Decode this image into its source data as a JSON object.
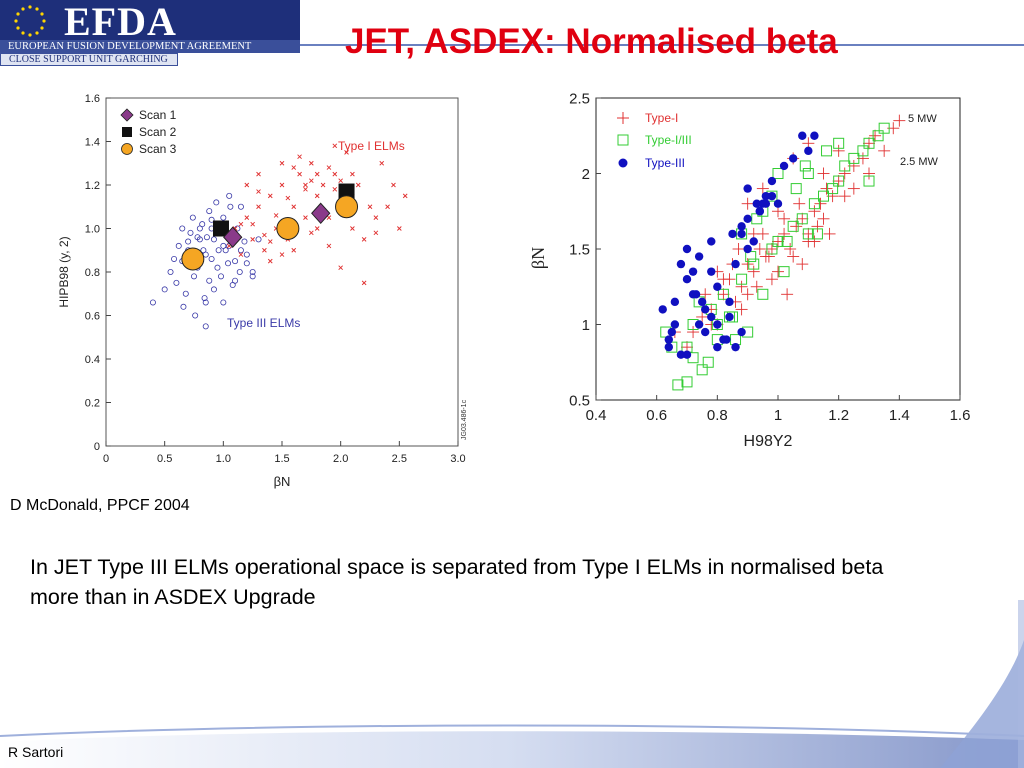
{
  "header": {
    "logo_text": "EFDA",
    "logo_subtitle": "EUROPEAN FUSION DEVELOPMENT AGREEMENT",
    "logo_unit": "CLOSE SUPPORT UNIT GARCHING",
    "title": "JET, ASDEX: Normalised beta"
  },
  "chart_data": [
    {
      "type": "scatter",
      "xlabel": "βN",
      "ylabel": "HIPB98 (y, 2)",
      "xlim": [
        0,
        3.0
      ],
      "ylim": [
        0,
        1.6
      ],
      "xticks": [
        "0",
        "0.5",
        "1.0",
        "1.5",
        "2.0",
        "2.5",
        "3.0"
      ],
      "yticks": [
        "0",
        "0.2",
        "0.4",
        "0.6",
        "0.8",
        "1.0",
        "1.2",
        "1.4",
        "1.6"
      ],
      "legend": [
        "Scan 1",
        "Scan 2",
        "Scan 3"
      ],
      "legend_position": "top-left",
      "annotations": [
        "Type I ELMs",
        "Type III ELMs",
        "JG03.486-1c"
      ],
      "grid": false,
      "colors": {
        "type1": "#e03030",
        "type3": "#3a3aa8",
        "scan1": "#8a3a8a",
        "scan2": "#111111",
        "scan3": "#f5a623"
      },
      "series": [
        {
          "name": "Scan 1",
          "marker": "diamond",
          "x": [
            1.08,
            1.83
          ],
          "y": [
            0.96,
            1.07
          ]
        },
        {
          "name": "Scan 2",
          "marker": "square",
          "x": [
            0.98,
            2.05
          ],
          "y": [
            1.0,
            1.17
          ]
        },
        {
          "name": "Scan 3",
          "marker": "circle",
          "x": [
            0.74,
            1.55,
            2.05
          ],
          "y": [
            0.86,
            1.0,
            1.1
          ]
        },
        {
          "name": "Type I ELMs",
          "marker": "x",
          "x": [
            1.05,
            1.1,
            1.15,
            1.2,
            1.25,
            1.3,
            1.35,
            1.4,
            1.45,
            1.5,
            1.55,
            1.6,
            1.65,
            1.7,
            1.75,
            1.8,
            1.85,
            1.9,
            1.95,
            2.0,
            2.05,
            2.1,
            2.15,
            2.2,
            2.3,
            2.4,
            2.5,
            2.55,
            1.2,
            1.3,
            1.4,
            1.5,
            1.6,
            1.7,
            1.8,
            1.9,
            2.0,
            2.1,
            1.65,
            1.75,
            1.85,
            1.95,
            2.05,
            1.45,
            1.35,
            1.25,
            1.55,
            2.25,
            2.35,
            2.45,
            1.15,
            2.2,
            1.7,
            1.9,
            1.6,
            1.3,
            1.5,
            1.8,
            2.0,
            1.4,
            1.1,
            2.1,
            2.3,
            1.95,
            1.75
          ],
          "y": [
            0.92,
            1.0,
            0.88,
            1.05,
            0.95,
            1.1,
            0.9,
            1.15,
            1.0,
            1.2,
            0.95,
            1.1,
            1.25,
            1.05,
            1.3,
            1.15,
            1.2,
            1.05,
            1.25,
            1.1,
            1.35,
            1.0,
            1.2,
            0.95,
            1.05,
            1.1,
            1.0,
            1.15,
            1.2,
            1.25,
            0.85,
            1.3,
            0.9,
            1.2,
            1.0,
            1.28,
            1.22,
            1.15,
            1.33,
            0.98,
            1.08,
            1.18,
            1.12,
            1.06,
            0.97,
            1.02,
            1.14,
            1.1,
            1.3,
            1.2,
            1.02,
            0.75,
            1.18,
            0.92,
            1.28,
            1.17,
            0.88,
            1.25,
            0.82,
            0.94,
            0.98,
            1.25,
            0.98,
            1.38,
            1.22
          ]
        },
        {
          "name": "Type III ELMs",
          "marker": "o",
          "x": [
            0.4,
            0.5,
            0.55,
            0.6,
            0.65,
            0.7,
            0.75,
            0.8,
            0.85,
            0.9,
            0.95,
            1.0,
            1.05,
            1.1,
            1.15,
            1.2,
            1.25,
            1.3,
            0.62,
            0.72,
            0.82,
            0.92,
            1.02,
            1.12,
            0.68,
            0.78,
            0.88,
            0.98,
            1.08,
            1.18,
            0.58,
            0.66,
            0.74,
            0.84,
            0.94,
            1.04,
            1.14,
            0.86,
            0.96,
            1.06,
            0.76,
            0.8,
            0.9,
            1.0,
            1.1,
            0.85,
            0.95,
            1.15,
            1.2,
            0.7,
            0.88,
            1.05,
            0.65,
            0.92,
            1.0,
            1.08,
            0.83,
            0.9,
            1.25,
            0.85,
            0.78
          ],
          "y": [
            0.66,
            0.72,
            0.8,
            0.75,
            0.85,
            0.9,
            0.78,
            0.95,
            0.88,
            1.0,
            0.82,
            1.05,
            0.92,
            0.85,
            1.1,
            0.88,
            0.8,
            0.95,
            0.92,
            0.98,
            1.02,
            0.95,
            0.9,
            1.0,
            0.7,
            0.82,
            1.08,
            0.78,
            0.74,
            0.94,
            0.86,
            0.64,
            1.05,
            0.68,
            1.12,
            0.84,
            0.8,
            0.96,
            0.9,
            1.1,
            0.6,
            1.0,
            0.86,
            0.92,
            0.76,
            0.55,
            1.0,
            0.9,
            0.84,
            0.94,
            0.76,
            1.15,
            1.0,
            0.72,
            0.66,
            0.98,
            0.9,
            1.04,
            0.78,
            0.66,
            0.96
          ]
        }
      ]
    },
    {
      "type": "scatter",
      "xlabel": "H98Y2",
      "ylabel": "βN",
      "xlim": [
        0.4,
        1.6
      ],
      "ylim": [
        0.5,
        2.5
      ],
      "xticks": [
        "0.4",
        "0.6",
        "0.8",
        "1",
        "1.2",
        "1.4",
        "1.6"
      ],
      "yticks": [
        "0.5",
        "1",
        "1.5",
        "2",
        "2.5"
      ],
      "legend": [
        "Type-I",
        "Type-I/III",
        "Type-III"
      ],
      "legend_position": "top-left",
      "annotations": [
        "5 MW",
        "2.5 MW"
      ],
      "grid": false,
      "colors": {
        "type1": "#e03030",
        "type13": "#33cc33",
        "type3": "#1010c0"
      },
      "series": [
        {
          "name": "Type-I",
          "marker": "plus",
          "x": [
            0.72,
            0.75,
            0.78,
            0.8,
            0.82,
            0.84,
            0.86,
            0.88,
            0.9,
            0.92,
            0.94,
            0.96,
            0.98,
            1.0,
            1.02,
            1.04,
            1.06,
            1.08,
            1.1,
            1.12,
            1.14,
            1.16,
            1.18,
            1.2,
            1.22,
            1.25,
            1.28,
            1.3,
            1.32,
            1.35,
            1.38,
            1.4,
            0.85,
            0.9,
            0.95,
            1.0,
            1.05,
            1.1,
            1.15,
            0.88,
            0.93,
            0.98,
            1.03,
            1.08,
            1.13,
            0.82,
            0.87,
            0.92,
            0.97,
            1.02,
            1.07,
            1.12,
            1.17,
            1.22,
            0.66,
            0.7,
            0.76,
            0.8,
            1.25,
            1.3,
            1.05,
            1.1,
            1.15,
            1.2,
            0.9,
            0.95,
            1.0,
            0.78
          ],
          "y": [
            0.95,
            1.05,
            1.1,
            1.0,
            1.2,
            1.3,
            1.15,
            1.25,
            1.4,
            1.35,
            1.5,
            1.45,
            1.3,
            1.55,
            1.6,
            1.5,
            1.65,
            1.7,
            1.6,
            1.75,
            1.8,
            1.9,
            1.85,
            1.95,
            2.0,
            2.05,
            2.1,
            2.2,
            2.25,
            2.15,
            2.3,
            2.35,
            1.4,
            1.2,
            1.6,
            1.35,
            1.45,
            1.55,
            1.7,
            1.1,
            1.25,
            1.5,
            1.2,
            1.4,
            1.65,
            1.3,
            1.5,
            1.6,
            1.45,
            1.7,
            1.8,
            1.55,
            1.6,
            1.85,
            0.95,
            0.85,
            1.2,
            1.35,
            1.9,
            2.0,
            2.1,
            2.2,
            2.0,
            2.15,
            1.8,
            1.9,
            1.75,
            1.0
          ]
        },
        {
          "name": "Type-I/III",
          "marker": "square",
          "x": [
            0.63,
            0.67,
            0.7,
            0.72,
            0.75,
            0.78,
            0.8,
            0.82,
            0.85,
            0.88,
            0.9,
            0.92,
            0.95,
            0.98,
            1.0,
            1.02,
            1.05,
            1.08,
            1.1,
            1.12,
            1.15,
            1.18,
            1.2,
            1.22,
            1.25,
            1.28,
            1.3,
            1.33,
            1.35,
            0.65,
            0.7,
            0.74,
            0.77,
            0.84,
            0.88,
            0.91,
            0.95,
            1.0,
            1.03,
            1.06,
            1.09,
            1.13,
            1.16,
            0.8,
            0.86,
            0.93,
            0.98,
            1.1,
            1.2,
            1.3,
            0.72
          ],
          "y": [
            0.95,
            0.6,
            0.85,
            1.0,
            0.7,
            1.1,
            0.9,
            1.2,
            1.05,
            1.3,
            0.95,
            1.4,
            1.2,
            1.5,
            1.55,
            1.35,
            1.65,
            1.7,
            1.6,
            1.8,
            1.85,
            1.9,
            1.95,
            2.05,
            2.1,
            2.15,
            2.2,
            2.25,
            2.3,
            0.85,
            0.62,
            1.15,
            0.75,
            1.05,
            1.6,
            1.45,
            1.75,
            2.0,
            1.55,
            1.9,
            2.05,
            1.6,
            2.15,
            1.0,
            0.9,
            1.7,
            1.85,
            2.0,
            2.2,
            1.95,
            0.78
          ]
        },
        {
          "name": "Type-III",
          "marker": "dot",
          "x": [
            0.62,
            0.64,
            0.66,
            0.68,
            0.7,
            0.72,
            0.74,
            0.76,
            0.78,
            0.8,
            0.82,
            0.84,
            0.86,
            0.88,
            0.9,
            0.92,
            0.94,
            0.96,
            0.98,
            1.0,
            1.02,
            1.05,
            1.08,
            1.1,
            0.65,
            0.7,
            0.75,
            0.8,
            0.85,
            0.9,
            0.95,
            0.68,
            0.73,
            0.78,
            0.83,
            0.88,
            0.93,
            0.98,
            0.7,
            0.8,
            0.9,
            0.64,
            0.74,
            0.84,
            0.94,
            0.86,
            0.72,
            0.78,
            0.88,
            1.12,
            0.96,
            0.66,
            0.76
          ],
          "y": [
            1.1,
            0.85,
            1.0,
            0.8,
            1.5,
            1.2,
            1.45,
            1.1,
            1.35,
            1.0,
            0.9,
            1.05,
            1.4,
            0.95,
            1.9,
            1.55,
            1.75,
            1.85,
            1.95,
            1.8,
            2.05,
            2.1,
            2.25,
            2.15,
            0.95,
            1.3,
            1.15,
            0.85,
            1.6,
            1.7,
            1.8,
            1.4,
            1.2,
            1.55,
            0.9,
            1.65,
            1.8,
            1.85,
            0.8,
            1.25,
            1.5,
            0.9,
            1.0,
            1.15,
            1.75,
            0.85,
            1.35,
            1.05,
            1.6,
            2.25,
            1.8,
            1.15,
            0.95
          ]
        }
      ]
    }
  ],
  "caption": "D McDonald, PPCF 2004",
  "body": "In JET Type III ELMs operational space is separated from Type I ELMs in normalised beta more than in ASDEX Upgrade",
  "footer": {
    "author": "R Sartori"
  }
}
